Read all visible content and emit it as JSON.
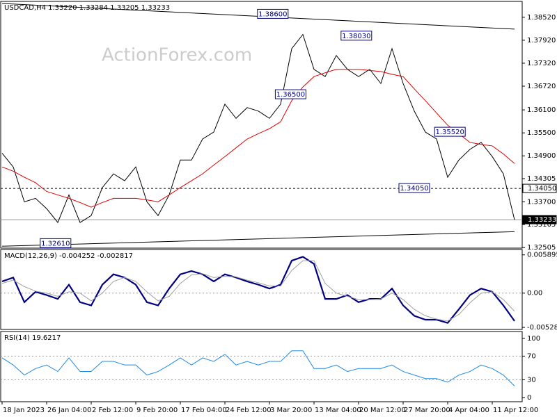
{
  "chart_data": [
    {
      "type": "ohlc-line",
      "title": "USDCAD,H4  1.33220 1.33284 1.33205 1.33233",
      "watermark": "ActionForex.com",
      "ylim": [
        1.3249,
        1.3888
      ],
      "yticks": [
        {
          "value": 1.3852,
          "label": "1.38520"
        },
        {
          "value": 1.3792,
          "label": "1.37920"
        },
        {
          "value": 1.3732,
          "label": "1.37320"
        },
        {
          "value": 1.3672,
          "label": "1.36720"
        },
        {
          "value": 1.361,
          "label": "1.36100"
        },
        {
          "value": 1.355,
          "label": "1.35500"
        },
        {
          "value": 1.349,
          "label": "1.34900"
        },
        {
          "value": 1.34305,
          "label": "1.34305"
        },
        {
          "value": 1.337,
          "label": "1.33700"
        },
        {
          "value": 1.33105,
          "label": "1.33105"
        },
        {
          "value": 1.32505,
          "label": "1.32505"
        }
      ],
      "series": [
        {
          "name": "USDCAD",
          "color": "#000000",
          "values": [
            1.3497,
            1.3461,
            1.337,
            1.3379,
            1.3352,
            1.3316,
            1.3388,
            1.3316,
            1.3334,
            1.3407,
            1.3443,
            1.3425,
            1.3461,
            1.337,
            1.3334,
            1.3388,
            1.3479,
            1.3479,
            1.3534,
            1.3552,
            1.3625,
            1.3588,
            1.3616,
            1.3607,
            1.3588,
            1.3625,
            1.377,
            1.3807,
            1.3716,
            1.3697,
            1.3752,
            1.3716,
            1.3697,
            1.3716,
            1.3679,
            1.377,
            1.3679,
            1.3607,
            1.3552,
            1.3534,
            1.3434,
            1.3479,
            1.3507,
            1.3525,
            1.3488,
            1.3443,
            1.3323
          ]
        },
        {
          "name": "MA",
          "color": "#e00000",
          "values": [
            1.3461,
            1.345,
            1.3434,
            1.342,
            1.3397,
            1.3388,
            1.3379,
            1.3368,
            1.3356,
            1.3368,
            1.3379,
            1.3379,
            1.3379,
            1.3375,
            1.337,
            1.3388,
            1.3407,
            1.3425,
            1.3443,
            1.3466,
            1.3488,
            1.3511,
            1.3534,
            1.3548,
            1.3561,
            1.3579,
            1.3634,
            1.367,
            1.3697,
            1.3707,
            1.3716,
            1.3716,
            1.3716,
            1.3713,
            1.371,
            1.3703,
            1.3697,
            1.3665,
            1.3634,
            1.3602,
            1.357,
            1.3548,
            1.3525,
            1.352,
            1.3516,
            1.3495,
            1.347
          ]
        }
      ],
      "trendlines": [
        {
          "values": [
            1.3254,
            1.3292
          ]
        },
        {
          "values": [
            1.3888,
            1.3821
          ]
        }
      ],
      "hlines": [
        {
          "value": 1.3405,
          "label": "1.34050",
          "style": "dashed"
        },
        {
          "value": 1.33233,
          "label": "1.33233",
          "style": "solid"
        }
      ],
      "annotations": [
        {
          "text": "1.38600",
          "value": 1.386,
          "x": 24.3
        },
        {
          "text": "1.38030",
          "value": 1.3803,
          "x": 31.8
        },
        {
          "text": "1.36500",
          "value": 1.365,
          "x": 25.9
        },
        {
          "text": "1.35520",
          "value": 1.3552,
          "x": 40.2
        },
        {
          "text": "1.34050",
          "value": 1.3405,
          "x": 37
        },
        {
          "text": "1.32610",
          "value": 1.3261,
          "x": 4.8
        }
      ]
    },
    {
      "type": "line",
      "title": "MACD(12,26,9) -0.004252 -0.002817",
      "ylim": [
        -0.0056,
        0.0064
      ],
      "yticks": [
        0.005895,
        {
          "value": 0,
          "label": "0.00"
        },
        -0.005286
      ],
      "levels": [
        0
      ],
      "series": [
        {
          "name": "MACD",
          "color": "#000080",
          "width": 2.2,
          "values": [
            0.0018,
            0.0024,
            -0.0014,
            0.0002,
            -0.0003,
            -0.0009,
            0.0013,
            -0.0014,
            -0.0019,
            0.0013,
            0.0029,
            0.0024,
            0.0013,
            -0.0014,
            -0.0019,
            0.0007,
            0.0029,
            0.0034,
            0.0029,
            0.0018,
            0.0029,
            0.0024,
            0.0018,
            0.0013,
            0.0007,
            0.0013,
            0.005,
            0.0056,
            0.0045,
            -0.0009,
            -0.0009,
            -0.0003,
            -0.0014,
            -0.0009,
            -0.0009,
            0.0007,
            -0.0019,
            -0.0035,
            -0.0041,
            -0.0041,
            -0.0046,
            -0.0025,
            -0.0003,
            0.0007,
            0.0002,
            -0.0019,
            -0.0043
          ]
        },
        {
          "name": "Signal",
          "color": "#a0a0a0",
          "width": 1,
          "values": [
            0.0015,
            0.002,
            0.001,
            0.0003,
            0.0,
            -0.0005,
            0.0002,
            0.0,
            -0.0012,
            0.0,
            0.0018,
            0.0024,
            0.0018,
            0.0002,
            -0.0012,
            -0.0005,
            0.0015,
            0.0028,
            0.003,
            0.0024,
            0.0026,
            0.0025,
            0.002,
            0.0016,
            0.0011,
            0.0011,
            0.0035,
            0.005,
            0.005,
            0.0015,
            0.0,
            -0.0005,
            -0.001,
            -0.001,
            -0.0009,
            0.0,
            -0.001,
            -0.0025,
            -0.0035,
            -0.004,
            -0.0043,
            -0.0033,
            -0.0015,
            0.0,
            0.0002,
            -0.001,
            -0.0028
          ]
        }
      ]
    },
    {
      "type": "line",
      "title": "RSI(14) 19.6217",
      "ylim": [
        -7,
        108
      ],
      "yticks": [
        100,
        70,
        30,
        0
      ],
      "levels": [
        70,
        30
      ],
      "categories": [
        "18 Jan 2023",
        null,
        null,
        null,
        "26 Jan 04:00",
        null,
        null,
        null,
        "2 Feb 12:00",
        null,
        null,
        null,
        "9 Feb 20:00",
        null,
        null,
        null,
        "17 Feb 04:00",
        null,
        null,
        null,
        "24 Feb 12:00",
        null,
        null,
        null,
        "3 Mar 20:00",
        null,
        null,
        null,
        "13 Mar 04:00",
        null,
        null,
        null,
        "20 Mar 12:00",
        null,
        null,
        null,
        "27 Mar 20:00",
        null,
        null,
        null,
        "4 Apr 04:00",
        null,
        null,
        null,
        "11 Apr 12:00",
        null,
        null
      ],
      "series": [
        {
          "name": "RSI",
          "color": "#1e88e5",
          "width": 1,
          "values": [
            67,
            55,
            38,
            49,
            55,
            44,
            67,
            44,
            44,
            61,
            61,
            55,
            55,
            38,
            44,
            55,
            67,
            55,
            67,
            61,
            73,
            55,
            61,
            55,
            61,
            61,
            79,
            79,
            49,
            49,
            55,
            44,
            49,
            49,
            49,
            55,
            44,
            38,
            32,
            32,
            26,
            38,
            44,
            55,
            49,
            38,
            19.6
          ]
        }
      ]
    }
  ]
}
